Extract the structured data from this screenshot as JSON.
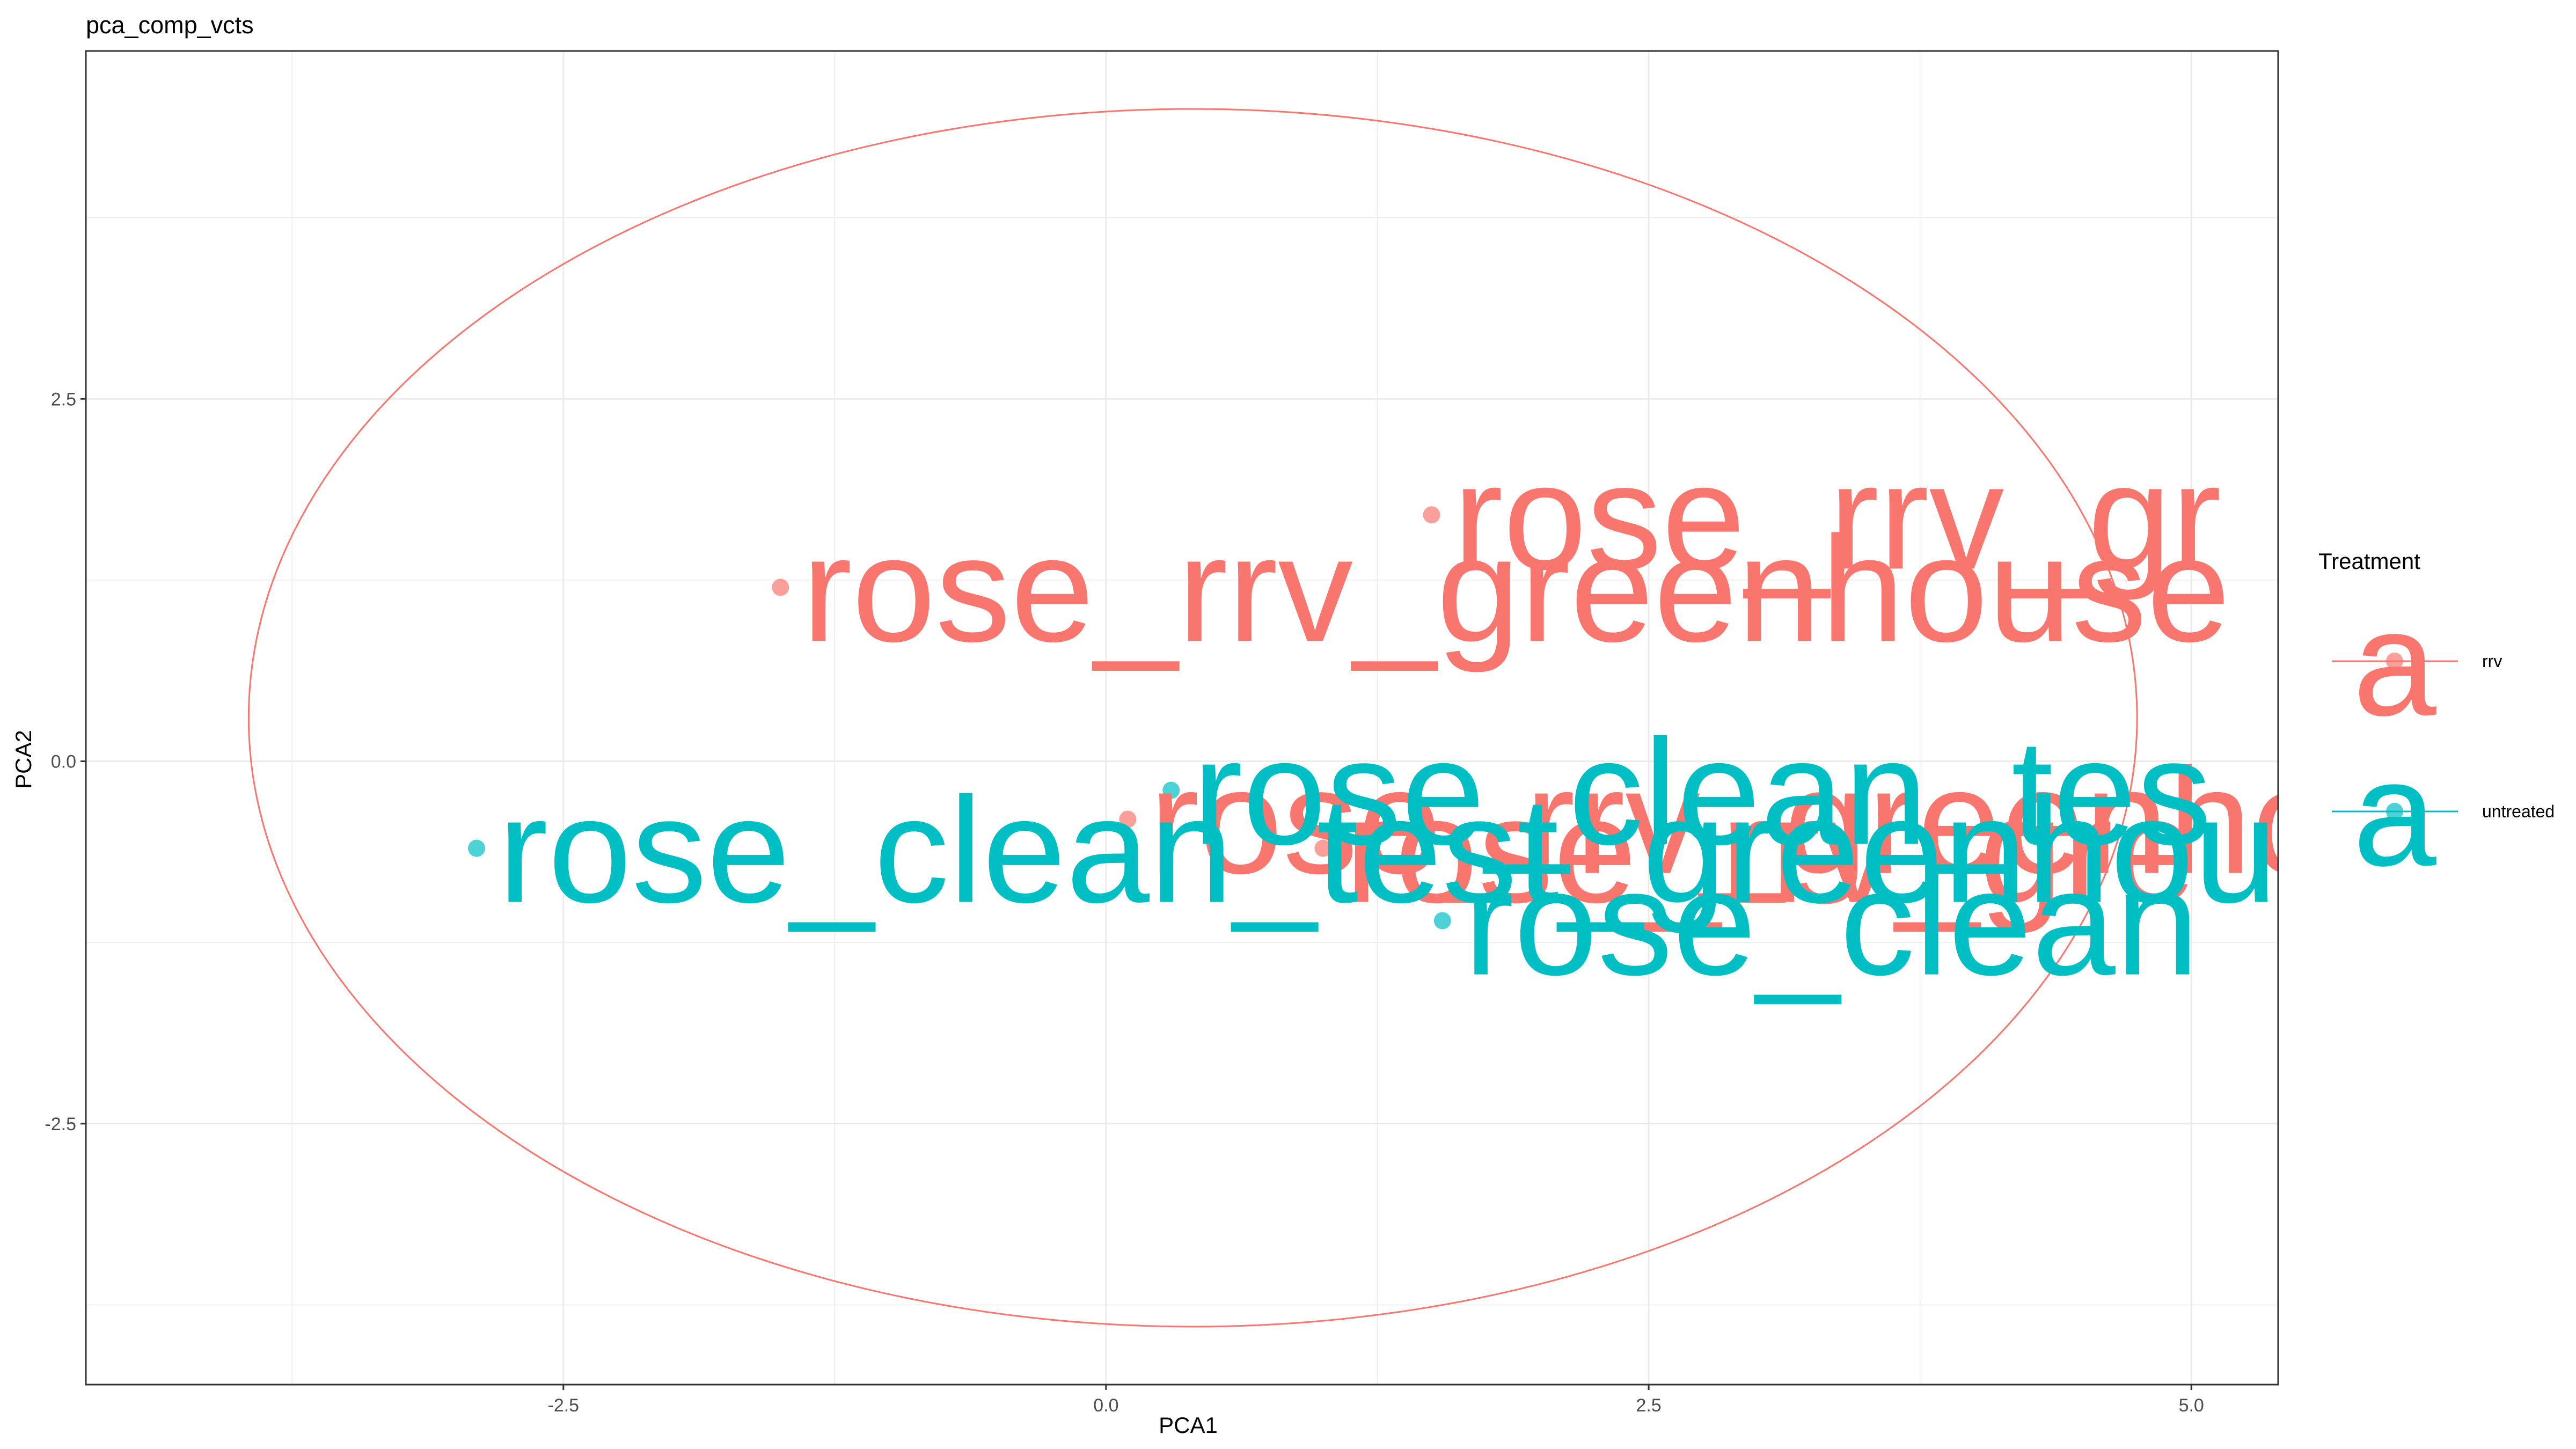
{
  "chart_data": {
    "type": "scatter",
    "title": "pca_comp_vcts",
    "xlabel": "PCA1",
    "ylabel": "PCA2",
    "xlim": [
      -4.7,
      5.4
    ],
    "ylim": [
      -4.3,
      4.9
    ],
    "x_ticks": [
      -2.5,
      0.0,
      2.5,
      5.0
    ],
    "x_tick_labels": [
      "-2.5",
      "0.0",
      "2.5",
      "5.0"
    ],
    "y_ticks": [
      -2.5,
      0.0,
      2.5
    ],
    "y_tick_labels": [
      "-2.5",
      "0.0",
      "2.5"
    ],
    "grid": true,
    "legend_title": "Treatment",
    "legend_position": "right",
    "legend_key_glyph": "a",
    "series": [
      {
        "name": "rrv",
        "color": "#F8766D",
        "points": [
          {
            "x": -1.5,
            "y": 1.2,
            "label": "rose_rrv_greenhouse"
          },
          {
            "x": 1.5,
            "y": 1.7,
            "label": "rose_rrv_gr"
          },
          {
            "x": 0.1,
            "y": -0.4,
            "label": "rose_rrv_greenhouse"
          },
          {
            "x": 1.0,
            "y": -0.6,
            "label": "rose_rrv_gre"
          }
        ]
      },
      {
        "name": "untreated",
        "color": "#00BFC4",
        "points": [
          {
            "x": -2.9,
            "y": -0.6,
            "label": "rose_clean_test_greenhouse"
          },
          {
            "x": 0.3,
            "y": -0.2,
            "label": "rose_clean_tes"
          },
          {
            "x": 1.55,
            "y": -1.1,
            "label": "rose_clean"
          }
        ]
      }
    ],
    "ellipses": [
      {
        "series": "rrv",
        "center": [
          0.4,
          0.3
        ],
        "semi_axis_x": 4.35,
        "semi_axis_y": 4.2
      }
    ]
  }
}
